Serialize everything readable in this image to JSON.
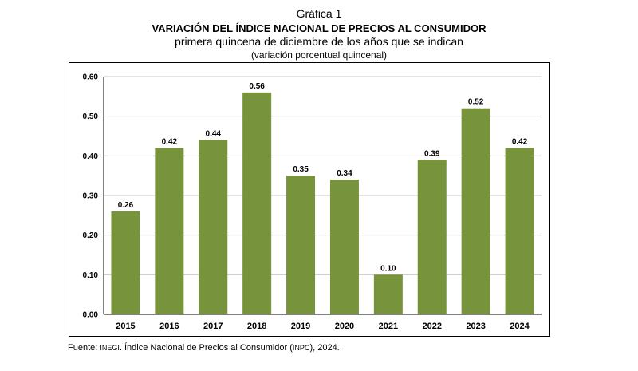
{
  "header": {
    "label": "Gráfica 1",
    "title": "VARIACIÓN DEL ÍNDICE NACIONAL DE PRECIOS AL CONSUMIDOR",
    "subtitle": "primera quincena de diciembre de los años que se indican",
    "unit": "(variación porcentual quincenal)"
  },
  "chart_data": {
    "type": "bar",
    "categories": [
      "2015",
      "2016",
      "2017",
      "2018",
      "2019",
      "2020",
      "2021",
      "2022",
      "2023",
      "2024"
    ],
    "values": [
      0.26,
      0.42,
      0.44,
      0.56,
      0.35,
      0.34,
      0.1,
      0.39,
      0.52,
      0.42
    ],
    "value_labels": [
      "0.26",
      "0.42",
      "0.44",
      "0.56",
      "0.35",
      "0.34",
      "0.10",
      "0.39",
      "0.52",
      "0.42"
    ],
    "title": "VARIACIÓN DEL ÍNDICE NACIONAL DE PRECIOS AL CONSUMIDOR",
    "xlabel": "",
    "ylabel": "",
    "ylim": [
      0,
      0.6
    ],
    "yticks": [
      "0.00",
      "0.10",
      "0.20",
      "0.30",
      "0.40",
      "0.50",
      "0.60"
    ],
    "grid": true,
    "bar_color": "#77933c",
    "grid_color": "#c8c8c8"
  },
  "source": {
    "prefix": "Fuente: ",
    "org_abbr": "INEGI",
    "mid": ". Índice Nacional de Precios al Consumidor (",
    "index_abbr": "INPC",
    "suffix": "), 2024."
  }
}
